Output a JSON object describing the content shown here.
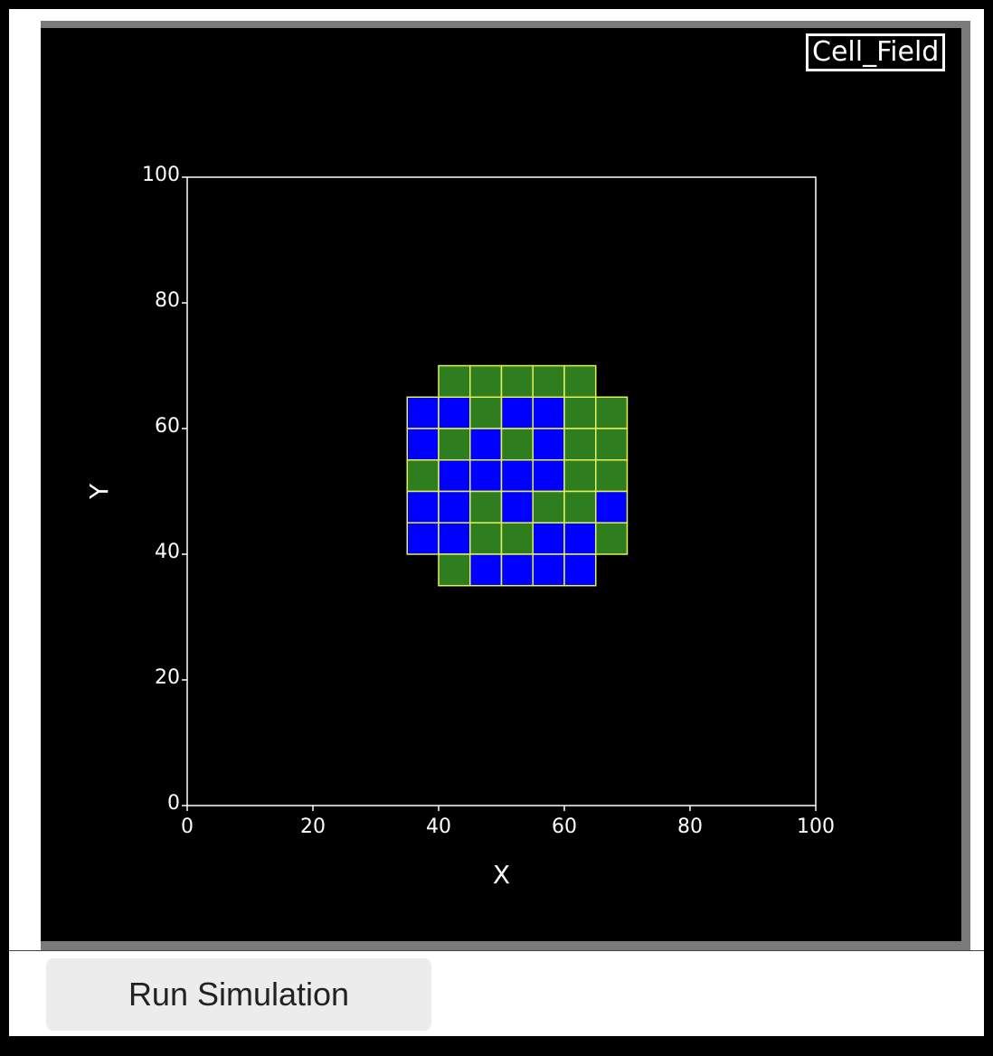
{
  "viewer": {
    "field_label": "Cell_Field"
  },
  "controls": {
    "run_label": "Run Simulation"
  },
  "chart_data": {
    "type": "heatmap",
    "xlabel": "X",
    "ylabel": "Y",
    "xlim": [
      0,
      100
    ],
    "ylim": [
      0,
      100
    ],
    "x_ticks": [
      "0",
      "20",
      "40",
      "60",
      "80",
      "100"
    ],
    "y_ticks": [
      "0",
      "20",
      "40",
      "60",
      "80",
      "100"
    ],
    "cell_size": 5,
    "cell_outline_color": "#e6f05a",
    "colors": {
      "G": "#2e7d1e",
      "B": "#0000ff"
    },
    "cells": [
      {
        "x": 40,
        "y": 65,
        "t": "G"
      },
      {
        "x": 45,
        "y": 65,
        "t": "G"
      },
      {
        "x": 50,
        "y": 65,
        "t": "G"
      },
      {
        "x": 55,
        "y": 65,
        "t": "G"
      },
      {
        "x": 60,
        "y": 65,
        "t": "G"
      },
      {
        "x": 35,
        "y": 60,
        "t": "B"
      },
      {
        "x": 40,
        "y": 60,
        "t": "B"
      },
      {
        "x": 45,
        "y": 60,
        "t": "G"
      },
      {
        "x": 50,
        "y": 60,
        "t": "B"
      },
      {
        "x": 55,
        "y": 60,
        "t": "B"
      },
      {
        "x": 60,
        "y": 60,
        "t": "G"
      },
      {
        "x": 65,
        "y": 60,
        "t": "G"
      },
      {
        "x": 35,
        "y": 55,
        "t": "B"
      },
      {
        "x": 40,
        "y": 55,
        "t": "G"
      },
      {
        "x": 45,
        "y": 55,
        "t": "B"
      },
      {
        "x": 50,
        "y": 55,
        "t": "G"
      },
      {
        "x": 55,
        "y": 55,
        "t": "B"
      },
      {
        "x": 60,
        "y": 55,
        "t": "G"
      },
      {
        "x": 65,
        "y": 55,
        "t": "G"
      },
      {
        "x": 35,
        "y": 50,
        "t": "G"
      },
      {
        "x": 40,
        "y": 50,
        "t": "B"
      },
      {
        "x": 45,
        "y": 50,
        "t": "B"
      },
      {
        "x": 50,
        "y": 50,
        "t": "B"
      },
      {
        "x": 55,
        "y": 50,
        "t": "B"
      },
      {
        "x": 60,
        "y": 50,
        "t": "G"
      },
      {
        "x": 65,
        "y": 50,
        "t": "G"
      },
      {
        "x": 35,
        "y": 45,
        "t": "B"
      },
      {
        "x": 40,
        "y": 45,
        "t": "B"
      },
      {
        "x": 45,
        "y": 45,
        "t": "G"
      },
      {
        "x": 50,
        "y": 45,
        "t": "B"
      },
      {
        "x": 55,
        "y": 45,
        "t": "G"
      },
      {
        "x": 60,
        "y": 45,
        "t": "G"
      },
      {
        "x": 65,
        "y": 45,
        "t": "B"
      },
      {
        "x": 35,
        "y": 40,
        "t": "B"
      },
      {
        "x": 40,
        "y": 40,
        "t": "B"
      },
      {
        "x": 45,
        "y": 40,
        "t": "G"
      },
      {
        "x": 50,
        "y": 40,
        "t": "G"
      },
      {
        "x": 55,
        "y": 40,
        "t": "B"
      },
      {
        "x": 60,
        "y": 40,
        "t": "B"
      },
      {
        "x": 65,
        "y": 40,
        "t": "G"
      },
      {
        "x": 40,
        "y": 35,
        "t": "G"
      },
      {
        "x": 45,
        "y": 35,
        "t": "B"
      },
      {
        "x": 50,
        "y": 35,
        "t": "B"
      },
      {
        "x": 55,
        "y": 35,
        "t": "B"
      },
      {
        "x": 60,
        "y": 35,
        "t": "B"
      }
    ]
  }
}
